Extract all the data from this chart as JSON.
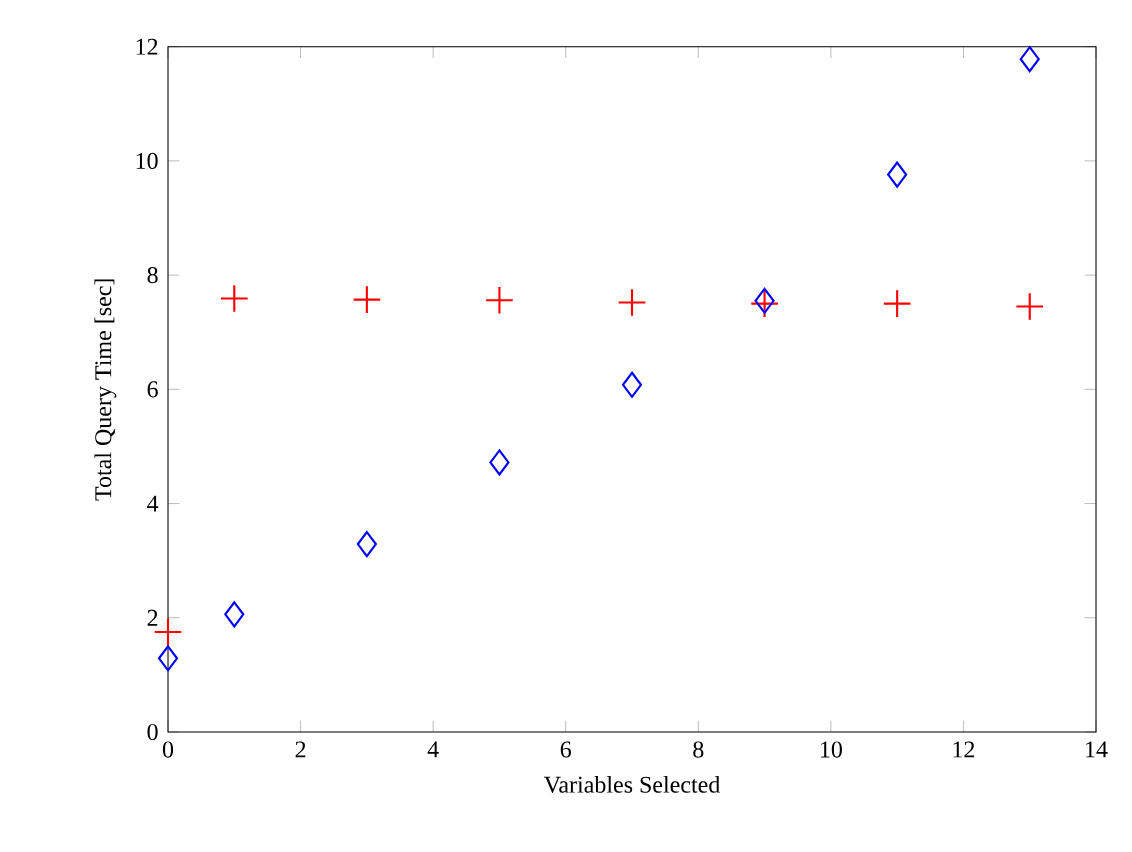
{
  "chart_data": {
    "type": "scatter",
    "xlabel": "Variables Selected",
    "ylabel": "Total Query Time [sec]",
    "xlim": [
      0,
      14
    ],
    "ylim": [
      0,
      12
    ],
    "xticks": [
      0,
      2,
      4,
      6,
      8,
      10,
      12,
      14
    ],
    "yticks": [
      0,
      2,
      4,
      6,
      8,
      10,
      12
    ],
    "series": [
      {
        "color": "#ff0000",
        "marker": "cross",
        "x": [
          0,
          1,
          3,
          5,
          7,
          9,
          11,
          13
        ],
        "values": [
          1.75,
          7.59,
          7.57,
          7.56,
          7.52,
          7.5,
          7.5,
          7.45
        ]
      },
      {
        "color": "#0000ff",
        "marker": "diamond",
        "x": [
          0,
          1,
          3,
          5,
          7,
          9,
          11,
          13
        ],
        "values": [
          1.29,
          2.06,
          3.29,
          4.72,
          6.08,
          7.55,
          9.76,
          11.78
        ]
      }
    ]
  }
}
